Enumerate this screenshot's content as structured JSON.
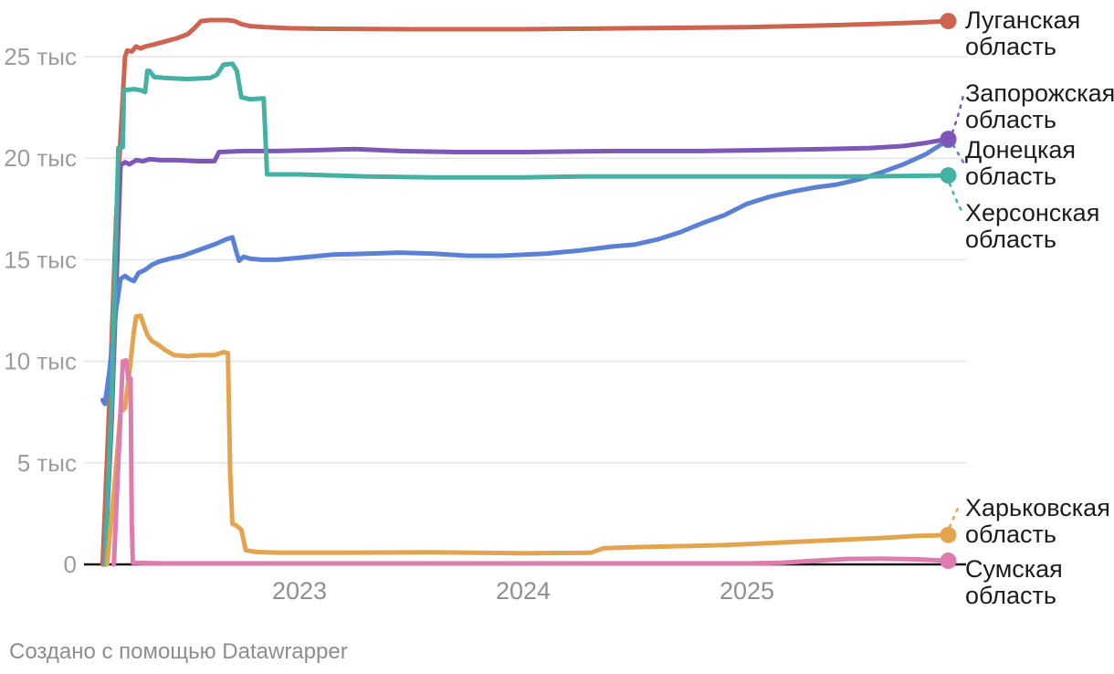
{
  "chart_data": {
    "type": "line",
    "title": "",
    "x_ticks": [
      2023,
      2024,
      2025
    ],
    "y_ticks": [
      {
        "v": 0,
        "label": "0"
      },
      {
        "v": 5,
        "label": "5 тыс"
      },
      {
        "v": 10,
        "label": "10 тыс"
      },
      {
        "v": 15,
        "label": "15 тыс"
      },
      {
        "v": 20,
        "label": "20 тыс"
      },
      {
        "v": 25,
        "label": "25 тыс"
      }
    ],
    "y_unit": "тыс",
    "xlim": [
      2022.1,
      2025.95
    ],
    "ylim": [
      0,
      27.5
    ],
    "grid": "horizontal",
    "legend_position": "right-edge-labels",
    "series": [
      {
        "key": "lugansk",
        "name": "Луганская область",
        "color": "#ce6450",
        "points": [
          [
            2022.12,
            0
          ],
          [
            2022.15,
            8
          ],
          [
            2022.18,
            17
          ],
          [
            2022.22,
            25.0
          ],
          [
            2022.23,
            25.3
          ],
          [
            2022.25,
            25.25
          ],
          [
            2022.27,
            25.5
          ],
          [
            2022.29,
            25.4
          ],
          [
            2022.31,
            25.5
          ],
          [
            2022.35,
            25.6
          ],
          [
            2022.4,
            25.75
          ],
          [
            2022.45,
            25.9
          ],
          [
            2022.5,
            26.1
          ],
          [
            2022.53,
            26.4
          ],
          [
            2022.56,
            26.75
          ],
          [
            2022.6,
            26.8
          ],
          [
            2022.68,
            26.8
          ],
          [
            2022.71,
            26.75
          ],
          [
            2022.74,
            26.6
          ],
          [
            2022.78,
            26.5
          ],
          [
            2022.85,
            26.45
          ],
          [
            2022.95,
            26.4
          ],
          [
            2023.1,
            26.37
          ],
          [
            2023.5,
            26.35
          ],
          [
            2024.0,
            26.35
          ],
          [
            2024.5,
            26.4
          ],
          [
            2025.0,
            26.45
          ],
          [
            2025.4,
            26.55
          ],
          [
            2025.7,
            26.65
          ],
          [
            2025.9,
            26.75
          ]
        ]
      },
      {
        "key": "zaporizhzhia",
        "name": "Запорожская область",
        "color": "#7c57b8",
        "points": [
          [
            2022.13,
            0
          ],
          [
            2022.16,
            7
          ],
          [
            2022.2,
            19.65
          ],
          [
            2022.22,
            19.8
          ],
          [
            2022.24,
            19.7
          ],
          [
            2022.27,
            19.9
          ],
          [
            2022.3,
            19.85
          ],
          [
            2022.33,
            19.95
          ],
          [
            2022.38,
            19.9
          ],
          [
            2022.45,
            19.9
          ],
          [
            2022.55,
            19.85
          ],
          [
            2022.62,
            19.85
          ],
          [
            2022.64,
            20.3
          ],
          [
            2022.75,
            20.35
          ],
          [
            2022.9,
            20.35
          ],
          [
            2023.1,
            20.4
          ],
          [
            2023.25,
            20.45
          ],
          [
            2023.45,
            20.35
          ],
          [
            2023.7,
            20.3
          ],
          [
            2024.0,
            20.3
          ],
          [
            2024.4,
            20.35
          ],
          [
            2024.8,
            20.35
          ],
          [
            2025.1,
            20.4
          ],
          [
            2025.35,
            20.45
          ],
          [
            2025.55,
            20.5
          ],
          [
            2025.7,
            20.6
          ],
          [
            2025.8,
            20.75
          ],
          [
            2025.9,
            20.95
          ]
        ]
      },
      {
        "key": "donetsk",
        "name": "Донецкая область",
        "color": "#5b81d7",
        "points": [
          [
            2022.12,
            8.1
          ],
          [
            2022.13,
            7.9
          ],
          [
            2022.15,
            9.5
          ],
          [
            2022.18,
            12.5
          ],
          [
            2022.2,
            14.05
          ],
          [
            2022.22,
            14.2
          ],
          [
            2022.24,
            14.05
          ],
          [
            2022.26,
            13.95
          ],
          [
            2022.28,
            14.35
          ],
          [
            2022.31,
            14.5
          ],
          [
            2022.34,
            14.75
          ],
          [
            2022.37,
            14.9
          ],
          [
            2022.42,
            15.05
          ],
          [
            2022.48,
            15.2
          ],
          [
            2022.53,
            15.4
          ],
          [
            2022.58,
            15.6
          ],
          [
            2022.63,
            15.8
          ],
          [
            2022.67,
            16.0
          ],
          [
            2022.7,
            16.1
          ],
          [
            2022.72,
            15.3
          ],
          [
            2022.73,
            14.95
          ],
          [
            2022.75,
            15.15
          ],
          [
            2022.78,
            15.05
          ],
          [
            2022.83,
            15.0
          ],
          [
            2022.9,
            15.0
          ],
          [
            2023.0,
            15.1
          ],
          [
            2023.15,
            15.25
          ],
          [
            2023.3,
            15.3
          ],
          [
            2023.45,
            15.35
          ],
          [
            2023.6,
            15.3
          ],
          [
            2023.75,
            15.2
          ],
          [
            2023.9,
            15.2
          ],
          [
            2024.1,
            15.3
          ],
          [
            2024.25,
            15.45
          ],
          [
            2024.4,
            15.65
          ],
          [
            2024.5,
            15.75
          ],
          [
            2024.6,
            16.0
          ],
          [
            2024.7,
            16.35
          ],
          [
            2024.8,
            16.8
          ],
          [
            2024.9,
            17.2
          ],
          [
            2025.0,
            17.75
          ],
          [
            2025.1,
            18.1
          ],
          [
            2025.2,
            18.35
          ],
          [
            2025.3,
            18.55
          ],
          [
            2025.4,
            18.7
          ],
          [
            2025.5,
            18.95
          ],
          [
            2025.6,
            19.3
          ],
          [
            2025.7,
            19.7
          ],
          [
            2025.8,
            20.2
          ],
          [
            2025.9,
            20.9
          ]
        ]
      },
      {
        "key": "kherson",
        "name": "Херсонская область",
        "color": "#45b1a2",
        "points": [
          [
            2022.13,
            0
          ],
          [
            2022.16,
            8
          ],
          [
            2022.19,
            20.5
          ],
          [
            2022.21,
            20.55
          ],
          [
            2022.215,
            23.35
          ],
          [
            2022.26,
            23.4
          ],
          [
            2022.29,
            23.35
          ],
          [
            2022.31,
            23.25
          ],
          [
            2022.32,
            24.3
          ],
          [
            2022.33,
            24.3
          ],
          [
            2022.35,
            24.0
          ],
          [
            2022.4,
            23.95
          ],
          [
            2022.5,
            23.9
          ],
          [
            2022.6,
            23.95
          ],
          [
            2022.63,
            24.1
          ],
          [
            2022.66,
            24.6
          ],
          [
            2022.7,
            24.65
          ],
          [
            2022.72,
            24.3
          ],
          [
            2022.74,
            23.0
          ],
          [
            2022.78,
            22.9
          ],
          [
            2022.84,
            22.95
          ],
          [
            2022.855,
            19.2
          ],
          [
            2023.0,
            19.2
          ],
          [
            2023.3,
            19.1
          ],
          [
            2023.6,
            19.05
          ],
          [
            2024.0,
            19.05
          ],
          [
            2024.25,
            19.1
          ],
          [
            2025.0,
            19.1
          ],
          [
            2025.5,
            19.1
          ],
          [
            2025.9,
            19.15
          ]
        ]
      },
      {
        "key": "kharkiv",
        "name": "Харьковская область",
        "color": "#e4a44e",
        "points": [
          [
            2022.14,
            0
          ],
          [
            2022.17,
            3.5
          ],
          [
            2022.2,
            7.5
          ],
          [
            2022.22,
            7.7
          ],
          [
            2022.24,
            9.5
          ],
          [
            2022.26,
            11.5
          ],
          [
            2022.27,
            12.2
          ],
          [
            2022.29,
            12.25
          ],
          [
            2022.3,
            11.9
          ],
          [
            2022.32,
            11.3
          ],
          [
            2022.34,
            11.0
          ],
          [
            2022.37,
            10.8
          ],
          [
            2022.4,
            10.55
          ],
          [
            2022.44,
            10.3
          ],
          [
            2022.5,
            10.25
          ],
          [
            2022.56,
            10.3
          ],
          [
            2022.62,
            10.3
          ],
          [
            2022.66,
            10.45
          ],
          [
            2022.68,
            10.4
          ],
          [
            2022.69,
            4.5
          ],
          [
            2022.7,
            2.0
          ],
          [
            2022.72,
            1.9
          ],
          [
            2022.74,
            1.7
          ],
          [
            2022.76,
            0.7
          ],
          [
            2022.8,
            0.62
          ],
          [
            2022.9,
            0.58
          ],
          [
            2023.2,
            0.58
          ],
          [
            2023.6,
            0.6
          ],
          [
            2024.0,
            0.55
          ],
          [
            2024.3,
            0.57
          ],
          [
            2024.36,
            0.8
          ],
          [
            2024.5,
            0.85
          ],
          [
            2024.7,
            0.9
          ],
          [
            2024.9,
            0.95
          ],
          [
            2025.0,
            1.0
          ],
          [
            2025.2,
            1.1
          ],
          [
            2025.4,
            1.2
          ],
          [
            2025.6,
            1.3
          ],
          [
            2025.75,
            1.4
          ],
          [
            2025.9,
            1.45
          ]
        ]
      },
      {
        "key": "sumy",
        "name": "Сумская область",
        "color": "#df7cae",
        "points": [
          [
            2022.17,
            0
          ],
          [
            2022.19,
            5
          ],
          [
            2022.21,
            10.0
          ],
          [
            2022.225,
            10.05
          ],
          [
            2022.23,
            9.6
          ],
          [
            2022.235,
            9.1
          ],
          [
            2022.245,
            9.15
          ],
          [
            2022.25,
            2
          ],
          [
            2022.255,
            0.08
          ],
          [
            2022.4,
            0.05
          ],
          [
            2023.0,
            0.05
          ],
          [
            2024.0,
            0.05
          ],
          [
            2025.0,
            0.05
          ],
          [
            2025.15,
            0.08
          ],
          [
            2025.3,
            0.18
          ],
          [
            2025.45,
            0.27
          ],
          [
            2025.6,
            0.28
          ],
          [
            2025.75,
            0.25
          ],
          [
            2025.9,
            0.18
          ]
        ]
      }
    ]
  },
  "colors": {
    "gridline": "#e4e4e4",
    "baseline": "#141414",
    "tick_text": "#9c9c9c",
    "x_tick_text": "#8f8f8f",
    "label_text": "#1c1c1c"
  },
  "footer": {
    "text": "Создано с помощью Datawrapper"
  }
}
